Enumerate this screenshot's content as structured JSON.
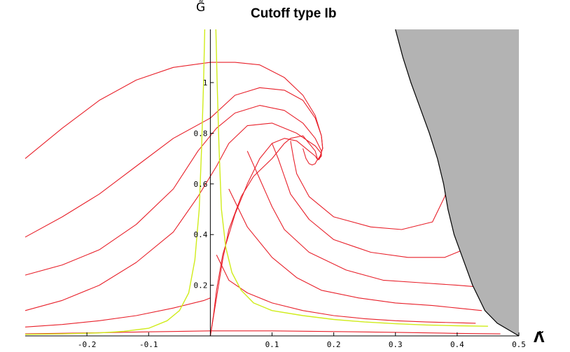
{
  "chart_data": {
    "type": "line",
    "title": "Cutoff type Ib",
    "xlabel": "Λ̃",
    "ylabel": "G̃",
    "xlim": [
      -0.3,
      0.5
    ],
    "ylim": [
      0,
      1.21
    ],
    "x_ticks": [
      {
        "value": -0.2,
        "label": "-0.2"
      },
      {
        "value": -0.1,
        "label": "-0.1"
      },
      {
        "value": 0.1,
        "label": "0.1"
      },
      {
        "value": 0.2,
        "label": "0.2"
      },
      {
        "value": 0.3,
        "label": "0.3"
      },
      {
        "value": 0.4,
        "label": "0.4"
      },
      {
        "value": 0.5,
        "label": "0.5"
      }
    ],
    "y_ticks": [
      {
        "value": 0.2,
        "label": "0.2"
      },
      {
        "value": 0.4,
        "label": "0.4"
      },
      {
        "value": 0.6,
        "label": "0.6"
      },
      {
        "value": 0.8,
        "label": "0.8"
      },
      {
        "value": 1.0,
        "label": "1"
      }
    ],
    "grid": false,
    "legend": "none",
    "fixed_point": [
      0.174,
      0.695
    ],
    "shaded_region_boundary": [
      [
        0.5,
        0.0
      ],
      [
        0.465,
        0.05
      ],
      [
        0.445,
        0.1
      ],
      [
        0.425,
        0.2
      ],
      [
        0.41,
        0.3
      ],
      [
        0.395,
        0.4
      ],
      [
        0.385,
        0.5
      ],
      [
        0.378,
        0.6
      ],
      [
        0.368,
        0.7
      ],
      [
        0.355,
        0.8
      ],
      [
        0.34,
        0.9
      ],
      [
        0.325,
        1.0
      ],
      [
        0.312,
        1.1
      ],
      [
        0.3,
        1.21
      ]
    ],
    "flows": [
      {
        "x": [
          -0.3,
          -0.24,
          -0.18,
          -0.12,
          -0.06,
          0.0,
          0.04,
          0.08,
          0.12,
          0.15,
          0.17,
          0.18,
          0.182,
          0.178,
          0.174
        ],
        "y": [
          0.7,
          0.82,
          0.93,
          1.01,
          1.06,
          1.08,
          1.08,
          1.07,
          1.02,
          0.95,
          0.87,
          0.79,
          0.74,
          0.71,
          0.695
        ]
      },
      {
        "x": [
          -0.3,
          -0.24,
          -0.18,
          -0.12,
          -0.06,
          0.0,
          0.04,
          0.08,
          0.12,
          0.15,
          0.17,
          0.18,
          0.182,
          0.178,
          0.174
        ],
        "y": [
          0.39,
          0.47,
          0.56,
          0.67,
          0.78,
          0.86,
          0.95,
          0.98,
          0.97,
          0.93,
          0.86,
          0.79,
          0.74,
          0.71,
          0.695
        ]
      },
      {
        "x": [
          -0.3,
          -0.24,
          -0.18,
          -0.12,
          -0.06,
          -0.02,
          0.01,
          0.04,
          0.08,
          0.12,
          0.15,
          0.17,
          0.18,
          0.18,
          0.175
        ],
        "y": [
          0.24,
          0.28,
          0.34,
          0.44,
          0.58,
          0.73,
          0.82,
          0.88,
          0.91,
          0.89,
          0.84,
          0.78,
          0.73,
          0.71,
          0.695
        ]
      },
      {
        "x": [
          -0.3,
          -0.24,
          -0.18,
          -0.12,
          -0.06,
          -0.02,
          0.01,
          0.03,
          0.06,
          0.1,
          0.14,
          0.17,
          0.18,
          0.176
        ],
        "y": [
          0.1,
          0.14,
          0.2,
          0.29,
          0.41,
          0.55,
          0.67,
          0.76,
          0.83,
          0.84,
          0.8,
          0.75,
          0.72,
          0.695
        ]
      },
      {
        "x": [
          -0.3,
          -0.24,
          -0.18,
          -0.12,
          -0.06,
          -0.01,
          0.0
        ],
        "y": [
          0.035,
          0.045,
          0.06,
          0.08,
          0.11,
          0.14,
          0.15
        ]
      },
      {
        "x": [
          -0.3,
          -0.2,
          -0.1,
          0.0,
          0.1,
          0.2,
          0.3,
          0.4,
          0.47
        ],
        "y": [
          0.008,
          0.012,
          0.016,
          0.02,
          0.02,
          0.017,
          0.014,
          0.01,
          0.008
        ]
      },
      {
        "x": [
          0.0,
          0.005,
          0.01,
          0.02,
          0.04,
          0.06,
          0.08,
          0.1,
          0.12,
          0.14,
          0.16,
          0.17,
          0.174
        ],
        "y": [
          0.0,
          0.08,
          0.18,
          0.32,
          0.48,
          0.6,
          0.7,
          0.76,
          0.78,
          0.77,
          0.73,
          0.71,
          0.695
        ]
      },
      {
        "x": [
          0.0,
          0.01,
          0.02,
          0.03,
          0.05,
          0.07,
          0.1,
          0.12,
          0.13,
          0.15,
          0.17,
          0.174
        ],
        "y": [
          0.0,
          0.15,
          0.3,
          0.42,
          0.55,
          0.63,
          0.7,
          0.76,
          0.78,
          0.79,
          0.73,
          0.695
        ]
      },
      {
        "x": [
          0.01,
          0.03,
          0.06,
          0.1,
          0.15,
          0.2,
          0.25,
          0.3,
          0.35,
          0.4,
          0.43
        ],
        "y": [
          0.32,
          0.22,
          0.17,
          0.13,
          0.1,
          0.08,
          0.068,
          0.06,
          0.055,
          0.052,
          0.05
        ]
      },
      {
        "x": [
          0.03,
          0.06,
          0.1,
          0.14,
          0.18,
          0.24,
          0.3,
          0.36,
          0.4,
          0.44
        ],
        "y": [
          0.58,
          0.43,
          0.31,
          0.23,
          0.18,
          0.15,
          0.13,
          0.12,
          0.11,
          0.1
        ]
      },
      {
        "x": [
          0.06,
          0.08,
          0.1,
          0.12,
          0.16,
          0.22,
          0.28,
          0.34,
          0.4,
          0.45
        ],
        "y": [
          0.73,
          0.62,
          0.51,
          0.42,
          0.33,
          0.26,
          0.22,
          0.21,
          0.2,
          0.19
        ]
      },
      {
        "x": [
          0.1,
          0.11,
          0.12,
          0.13,
          0.16,
          0.2,
          0.26,
          0.32,
          0.38,
          0.42
        ],
        "y": [
          0.76,
          0.7,
          0.63,
          0.56,
          0.46,
          0.38,
          0.33,
          0.31,
          0.31,
          0.35
        ]
      },
      {
        "x": [
          0.13,
          0.135,
          0.14,
          0.16,
          0.2,
          0.26,
          0.31,
          0.36,
          0.38,
          0.39
        ],
        "y": [
          0.77,
          0.7,
          0.64,
          0.55,
          0.47,
          0.43,
          0.42,
          0.45,
          0.55,
          0.64
        ]
      },
      {
        "x": [
          0.15,
          0.155,
          0.16,
          0.165,
          0.17,
          0.172,
          0.174
        ],
        "y": [
          0.74,
          0.7,
          0.68,
          0.675,
          0.68,
          0.69,
          0.695
        ]
      }
    ],
    "separatrices": [
      {
        "x": [
          -0.3,
          -0.24,
          -0.18,
          -0.14,
          -0.1,
          -0.07,
          -0.05,
          -0.035,
          -0.025,
          -0.018,
          -0.014,
          -0.011,
          -0.009
        ],
        "y": [
          0.006,
          0.008,
          0.012,
          0.018,
          0.03,
          0.06,
          0.1,
          0.17,
          0.3,
          0.5,
          0.75,
          1.0,
          1.21
        ]
      },
      {
        "x": [
          0.009,
          0.011,
          0.014,
          0.018,
          0.025,
          0.035,
          0.05,
          0.07,
          0.1,
          0.15,
          0.2,
          0.25,
          0.3,
          0.35,
          0.4,
          0.45
        ],
        "y": [
          1.21,
          1.0,
          0.75,
          0.5,
          0.35,
          0.25,
          0.18,
          0.13,
          0.1,
          0.08,
          0.065,
          0.055,
          0.048,
          0.043,
          0.04,
          0.038
        ]
      }
    ],
    "colors": {
      "flow": "#e8202a",
      "separatrix": "#d0ec1a",
      "shaded_region": "#b3b3b3",
      "axes": "#000000"
    }
  }
}
